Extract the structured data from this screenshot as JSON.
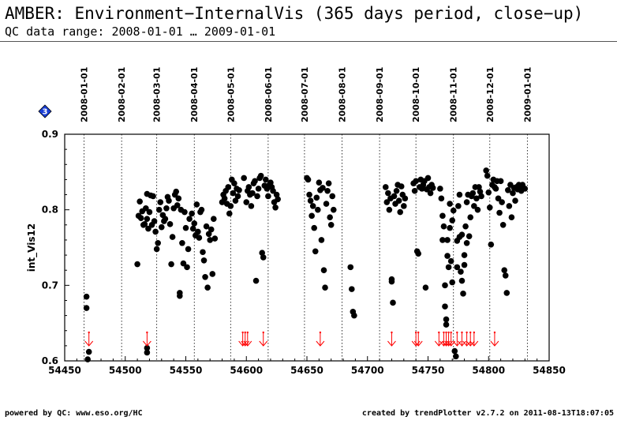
{
  "header": {
    "title": "AMBER: Environment−InternalVis (365 days period, close−up)",
    "subtitle": "QC data range: 2008-01-01 … 2009-01-01"
  },
  "footer": {
    "left": "powered by QC: www.eso.org/HC",
    "right": "created by trendPlotter v2.7.2 on 2011-08-13T18:07:05"
  },
  "badge": {
    "label": "3",
    "color": "#1a3fd6",
    "icon": "diamond-icon"
  },
  "colors": {
    "points": "#000000",
    "outliers": "#ff0000"
  },
  "chart_data": {
    "type": "scatter",
    "ylabel": "int_Vis12",
    "xlim": [
      54450,
      54850
    ],
    "ylim": [
      0.6,
      0.9
    ],
    "x_ticks": [
      54450,
      54500,
      54550,
      54600,
      54650,
      54700,
      54750,
      54800,
      54850
    ],
    "x_tick_labels": [
      "54450",
      "54500",
      "54550",
      "54600",
      "54650",
      "54700",
      "54750",
      "54800",
      "54850"
    ],
    "y_ticks": [
      0.6,
      0.7,
      0.8,
      0.9
    ],
    "y_tick_labels": [
      "0.6",
      "0.7",
      "0.8",
      "0.9"
    ],
    "date_markers": [
      {
        "label": "2008-01-01",
        "x": 54466
      },
      {
        "label": "2008-02-01",
        "x": 54497
      },
      {
        "label": "2008-03-01",
        "x": 54526
      },
      {
        "label": "2008-04-01",
        "x": 54557
      },
      {
        "label": "2008-05-01",
        "x": 54587
      },
      {
        "label": "2008-06-01",
        "x": 54618
      },
      {
        "label": "2008-07-01",
        "x": 54648
      },
      {
        "label": "2008-08-01",
        "x": 54679
      },
      {
        "label": "2008-09-01",
        "x": 54710
      },
      {
        "label": "2008-10-01",
        "x": 54740
      },
      {
        "label": "2008-11-01",
        "x": 54771
      },
      {
        "label": "2008-12-01",
        "x": 54801
      },
      {
        "label": "2009-01-01",
        "x": 54832
      }
    ],
    "grid": "vertical dotted lines at month boundaries",
    "series": [
      {
        "points": [
          [
            54468,
            0.685
          ],
          [
            54468,
            0.67
          ],
          [
            54470,
            0.612
          ],
          [
            54469,
            0.602
          ],
          [
            54510,
            0.728
          ],
          [
            54511,
            0.792
          ],
          [
            54512,
            0.811
          ],
          [
            54513,
            0.789
          ],
          [
            54514,
            0.798
          ],
          [
            54515,
            0.78
          ],
          [
            54516,
            0.781
          ],
          [
            54517,
            0.802
          ],
          [
            54518,
            0.821
          ],
          [
            54518,
            0.788
          ],
          [
            54519,
            0.775
          ],
          [
            54520,
            0.797
          ],
          [
            54521,
            0.819
          ],
          [
            54522,
            0.78
          ],
          [
            54523,
            0.818
          ],
          [
            54524,
            0.785
          ],
          [
            54525,
            0.771
          ],
          [
            54526,
            0.748
          ],
          [
            54527,
            0.756
          ],
          [
            54528,
            0.8
          ],
          [
            54529,
            0.81
          ],
          [
            54530,
            0.777
          ],
          [
            54531,
            0.793
          ],
          [
            54532,
            0.785
          ],
          [
            54533,
            0.788
          ],
          [
            54534,
            0.802
          ],
          [
            54535,
            0.817
          ],
          [
            54536,
            0.812
          ],
          [
            54537,
            0.781
          ],
          [
            54538,
            0.728
          ],
          [
            54539,
            0.764
          ],
          [
            54540,
            0.802
          ],
          [
            54541,
            0.82
          ],
          [
            54542,
            0.824
          ],
          [
            54543,
            0.806
          ],
          [
            54544,
            0.815
          ],
          [
            54545,
            0.69
          ],
          [
            54545,
            0.686
          ],
          [
            54546,
            0.8
          ],
          [
            54547,
            0.756
          ],
          [
            54548,
            0.729
          ],
          [
            54549,
            0.797
          ],
          [
            54550,
            0.776
          ],
          [
            54551,
            0.724
          ],
          [
            54552,
            0.748
          ],
          [
            54553,
            0.788
          ],
          [
            54518,
            0.617
          ],
          [
            54518,
            0.611
          ],
          [
            54555,
            0.795
          ],
          [
            54556,
            0.775
          ],
          [
            54557,
            0.782
          ],
          [
            54558,
            0.766
          ],
          [
            54559,
            0.807
          ],
          [
            54560,
            0.771
          ],
          [
            54561,
            0.763
          ],
          [
            54562,
            0.797
          ],
          [
            54563,
            0.8
          ],
          [
            54564,
            0.744
          ],
          [
            54565,
            0.733
          ],
          [
            54566,
            0.711
          ],
          [
            54567,
            0.778
          ],
          [
            54568,
            0.697
          ],
          [
            54569,
            0.768
          ],
          [
            54570,
            0.76
          ],
          [
            54571,
            0.774
          ],
          [
            54572,
            0.715
          ],
          [
            54573,
            0.788
          ],
          [
            54574,
            0.762
          ],
          [
            54580,
            0.81
          ],
          [
            54581,
            0.82
          ],
          [
            54582,
            0.815
          ],
          [
            54583,
            0.825
          ],
          [
            54584,
            0.808
          ],
          [
            54585,
            0.83
          ],
          [
            54586,
            0.795
          ],
          [
            54587,
            0.805
          ],
          [
            54588,
            0.84
          ],
          [
            54589,
            0.822
          ],
          [
            54590,
            0.835
          ],
          [
            54591,
            0.812
          ],
          [
            54592,
            0.828
          ],
          [
            54593,
            0.818
          ],
          [
            54594,
            0.826
          ],
          [
            54598,
            0.842
          ],
          [
            54600,
            0.81
          ],
          [
            54601,
            0.825
          ],
          [
            54602,
            0.83
          ],
          [
            54603,
            0.82
          ],
          [
            54604,
            0.805
          ],
          [
            54605,
            0.822
          ],
          [
            54606,
            0.835
          ],
          [
            54607,
            0.838
          ],
          [
            54608,
            0.706
          ],
          [
            54609,
            0.818
          ],
          [
            54610,
            0.828
          ],
          [
            54611,
            0.842
          ],
          [
            54612,
            0.845
          ],
          [
            54613,
            0.743
          ],
          [
            54614,
            0.737
          ],
          [
            54615,
            0.832
          ],
          [
            54616,
            0.84
          ],
          [
            54617,
            0.828
          ],
          [
            54618,
            0.818
          ],
          [
            54619,
            0.833
          ],
          [
            54620,
            0.836
          ],
          [
            54621,
            0.83
          ],
          [
            54622,
            0.825
          ],
          [
            54623,
            0.81
          ],
          [
            54624,
            0.803
          ],
          [
            54625,
            0.82
          ],
          [
            54626,
            0.814
          ],
          [
            54650,
            0.842
          ],
          [
            54651,
            0.84
          ],
          [
            54652,
            0.82
          ],
          [
            54653,
            0.812
          ],
          [
            54654,
            0.792
          ],
          [
            54655,
            0.805
          ],
          [
            54656,
            0.776
          ],
          [
            54657,
            0.745
          ],
          [
            54658,
            0.816
          ],
          [
            54659,
            0.8
          ],
          [
            54660,
            0.836
          ],
          [
            54661,
            0.826
          ],
          [
            54662,
            0.76
          ],
          [
            54663,
            0.829
          ],
          [
            54664,
            0.72
          ],
          [
            54665,
            0.697
          ],
          [
            54666,
            0.808
          ],
          [
            54667,
            0.825
          ],
          [
            54668,
            0.835
          ],
          [
            54669,
            0.79
          ],
          [
            54670,
            0.78
          ],
          [
            54671,
            0.818
          ],
          [
            54672,
            0.8
          ],
          [
            54686,
            0.724
          ],
          [
            54687,
            0.695
          ],
          [
            54688,
            0.665
          ],
          [
            54689,
            0.66
          ],
          [
            54715,
            0.83
          ],
          [
            54716,
            0.81
          ],
          [
            54717,
            0.822
          ],
          [
            54718,
            0.8
          ],
          [
            54719,
            0.815
          ],
          [
            54720,
            0.705
          ],
          [
            54720,
            0.708
          ],
          [
            54721,
            0.677
          ],
          [
            54722,
            0.818
          ],
          [
            54723,
            0.808
          ],
          [
            54724,
            0.825
          ],
          [
            54725,
            0.833
          ],
          [
            54726,
            0.812
          ],
          [
            54727,
            0.797
          ],
          [
            54728,
            0.831
          ],
          [
            54729,
            0.82
          ],
          [
            54730,
            0.805
          ],
          [
            54731,
            0.815
          ],
          [
            54738,
            0.835
          ],
          [
            54739,
            0.825
          ],
          [
            54740,
            0.838
          ],
          [
            54741,
            0.745
          ],
          [
            54742,
            0.742
          ],
          [
            54743,
            0.83
          ],
          [
            54744,
            0.84
          ],
          [
            54745,
            0.828
          ],
          [
            54746,
            0.833
          ],
          [
            54747,
            0.838
          ],
          [
            54748,
            0.697
          ],
          [
            54749,
            0.827
          ],
          [
            54750,
            0.842
          ],
          [
            54751,
            0.83
          ],
          [
            54752,
            0.822
          ],
          [
            54753,
            0.833
          ],
          [
            54754,
            0.829
          ],
          [
            54760,
            0.828
          ],
          [
            54761,
            0.815
          ],
          [
            54762,
            0.792
          ],
          [
            54763,
            0.778
          ],
          [
            54764,
            0.7
          ],
          [
            54764,
            0.672
          ],
          [
            54765,
            0.655
          ],
          [
            54765,
            0.648
          ],
          [
            54766,
            0.76
          ],
          [
            54767,
            0.724
          ],
          [
            54768,
            0.808
          ],
          [
            54769,
            0.732
          ],
          [
            54770,
            0.786
          ],
          [
            54771,
            0.799
          ],
          [
            54772,
            0.613
          ],
          [
            54773,
            0.606
          ],
          [
            54774,
            0.759
          ],
          [
            54775,
            0.805
          ],
          [
            54776,
            0.82
          ],
          [
            54777,
            0.718
          ],
          [
            54778,
            0.706
          ],
          [
            54779,
            0.689
          ],
          [
            54780,
            0.74
          ],
          [
            54781,
            0.778
          ],
          [
            54782,
            0.81
          ],
          [
            54783,
            0.82
          ],
          [
            54784,
            0.765
          ],
          [
            54785,
            0.79
          ],
          [
            54786,
            0.818
          ],
          [
            54787,
            0.822
          ],
          [
            54788,
            0.805
          ],
          [
            54789,
            0.83
          ],
          [
            54790,
            0.815
          ],
          [
            54791,
            0.8
          ],
          [
            54792,
            0.83
          ],
          [
            54793,
            0.824
          ],
          [
            54794,
            0.818
          ],
          [
            54762,
            0.76
          ],
          [
            54766,
            0.739
          ],
          [
            54768,
            0.776
          ],
          [
            54770,
            0.704
          ],
          [
            54774,
            0.724
          ],
          [
            54776,
            0.764
          ],
          [
            54778,
            0.767
          ],
          [
            54780,
            0.727
          ],
          [
            54782,
            0.756
          ],
          [
            54798,
            0.852
          ],
          [
            54799,
            0.845
          ],
          [
            54800,
            0.823
          ],
          [
            54801,
            0.803
          ],
          [
            54802,
            0.754
          ],
          [
            54803,
            0.833
          ],
          [
            54804,
            0.84
          ],
          [
            54805,
            0.83
          ],
          [
            54806,
            0.828
          ],
          [
            54807,
            0.838
          ],
          [
            54808,
            0.815
          ],
          [
            54809,
            0.796
          ],
          [
            54810,
            0.838
          ],
          [
            54811,
            0.81
          ],
          [
            54812,
            0.78
          ],
          [
            54813,
            0.72
          ],
          [
            54814,
            0.713
          ],
          [
            54815,
            0.69
          ],
          [
            54816,
            0.826
          ],
          [
            54817,
            0.805
          ],
          [
            54818,
            0.833
          ],
          [
            54819,
            0.79
          ],
          [
            54820,
            0.822
          ],
          [
            54821,
            0.829
          ],
          [
            54822,
            0.812
          ],
          [
            54823,
            0.83
          ],
          [
            54824,
            0.827
          ],
          [
            54825,
            0.833
          ],
          [
            54826,
            0.83
          ],
          [
            54827,
            0.825
          ],
          [
            54828,
            0.833
          ],
          [
            54830,
            0.828
          ]
        ]
      }
    ],
    "outlier_markers_x": [
      54470,
      54518,
      54597,
      54599,
      54601,
      54614,
      54661,
      54720,
      54740,
      54742,
      54759,
      54763,
      54765,
      54767,
      54769,
      54774,
      54778,
      54782,
      54785,
      54788,
      54805
    ]
  }
}
